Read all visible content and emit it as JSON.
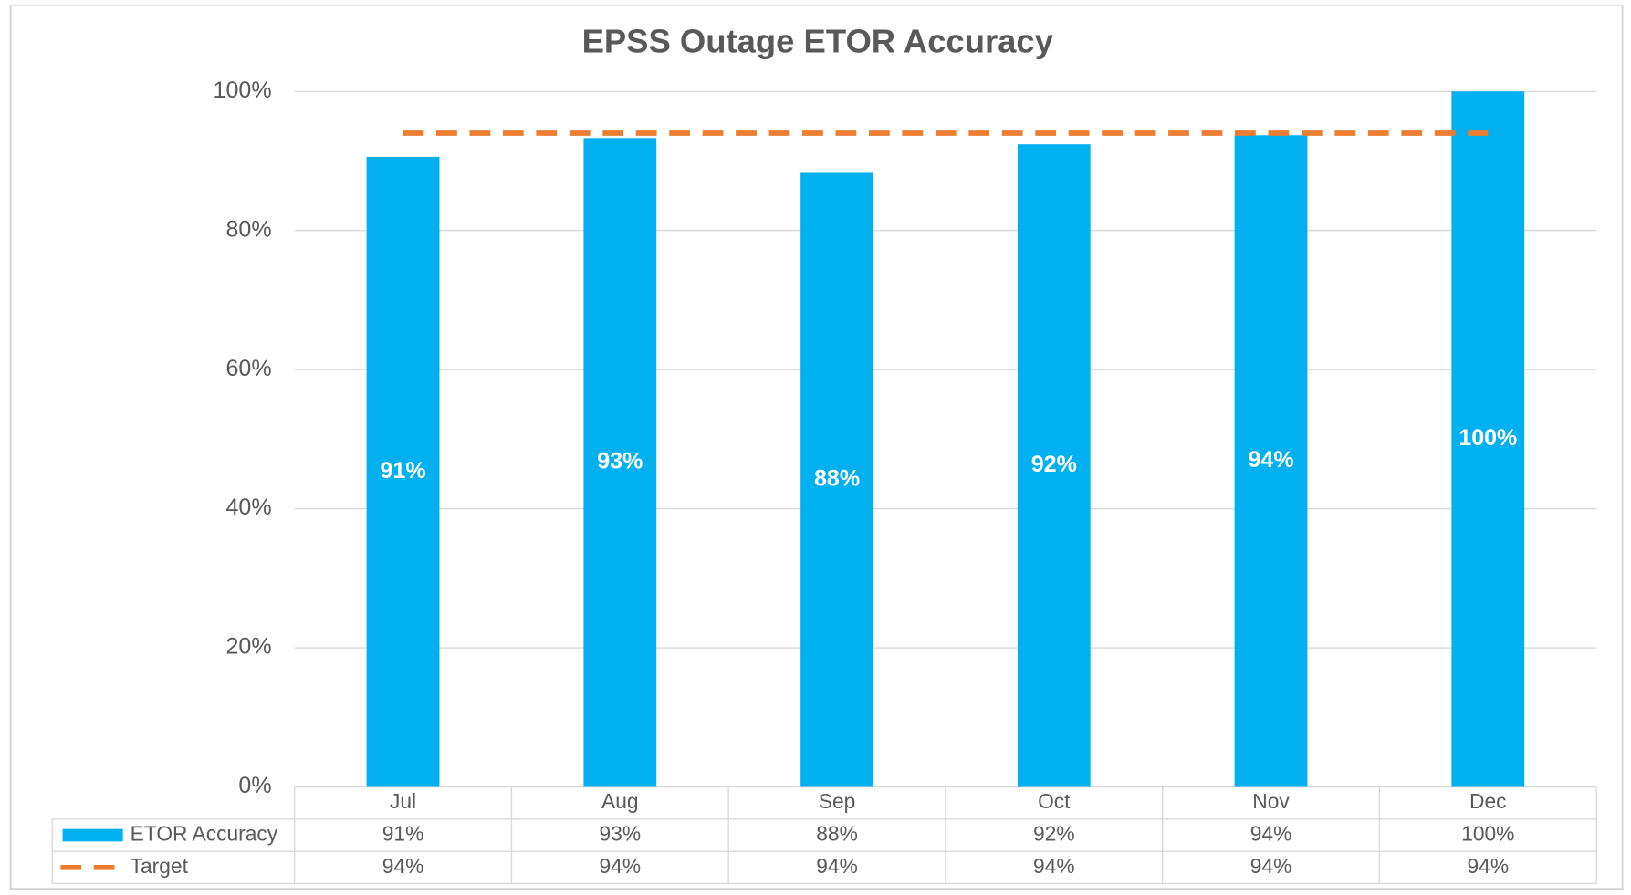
{
  "chart_data": {
    "type": "bar",
    "title": "EPSS Outage ETOR Accuracy",
    "categories": [
      "Jul",
      "Aug",
      "Sep",
      "Oct",
      "Nov",
      "Dec"
    ],
    "series": [
      {
        "name": "ETOR Accuracy",
        "type": "bar",
        "color": "#00b0f0",
        "values": [
          90.6,
          93.3,
          88.3,
          92.4,
          93.7,
          100
        ],
        "value_labels": [
          "91%",
          "93%",
          "88%",
          "92%",
          "94%",
          "100%"
        ]
      },
      {
        "name": "Target",
        "type": "line",
        "color": "#ed7d31",
        "dashed": true,
        "values": [
          94,
          94,
          94,
          94,
          94,
          94
        ],
        "value_labels": [
          "94%",
          "94%",
          "94%",
          "94%",
          "94%",
          "94%"
        ]
      }
    ],
    "ylim": [
      0,
      100
    ],
    "yticks": [
      {
        "value": 0,
        "label": "0%"
      },
      {
        "value": 20,
        "label": "20%"
      },
      {
        "value": 40,
        "label": "40%"
      },
      {
        "value": 60,
        "label": "60%"
      },
      {
        "value": 80,
        "label": "80%"
      },
      {
        "value": 100,
        "label": "100%"
      }
    ],
    "grid": true,
    "data_table": true
  }
}
